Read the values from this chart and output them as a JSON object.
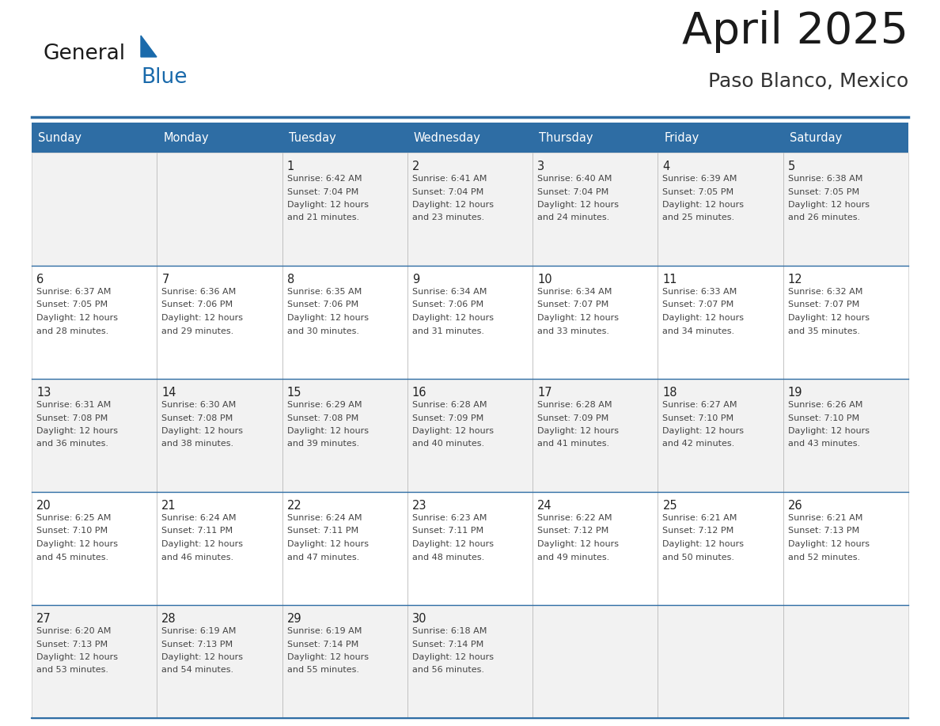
{
  "title": "April 2025",
  "subtitle": "Paso Blanco, Mexico",
  "header_bg_color": "#2E6DA4",
  "header_text_color": "#FFFFFF",
  "cell_bg_even": "#F2F2F2",
  "cell_bg_odd": "#FFFFFF",
  "day_names": [
    "Sunday",
    "Monday",
    "Tuesday",
    "Wednesday",
    "Thursday",
    "Friday",
    "Saturday"
  ],
  "days": [
    {
      "day": 1,
      "col": 2,
      "row": 0,
      "sunrise": "6:42 AM",
      "sunset": "7:04 PM",
      "daylight_hours": 12,
      "daylight_minutes": 21
    },
    {
      "day": 2,
      "col": 3,
      "row": 0,
      "sunrise": "6:41 AM",
      "sunset": "7:04 PM",
      "daylight_hours": 12,
      "daylight_minutes": 23
    },
    {
      "day": 3,
      "col": 4,
      "row": 0,
      "sunrise": "6:40 AM",
      "sunset": "7:04 PM",
      "daylight_hours": 12,
      "daylight_minutes": 24
    },
    {
      "day": 4,
      "col": 5,
      "row": 0,
      "sunrise": "6:39 AM",
      "sunset": "7:05 PM",
      "daylight_hours": 12,
      "daylight_minutes": 25
    },
    {
      "day": 5,
      "col": 6,
      "row": 0,
      "sunrise": "6:38 AM",
      "sunset": "7:05 PM",
      "daylight_hours": 12,
      "daylight_minutes": 26
    },
    {
      "day": 6,
      "col": 0,
      "row": 1,
      "sunrise": "6:37 AM",
      "sunset": "7:05 PM",
      "daylight_hours": 12,
      "daylight_minutes": 28
    },
    {
      "day": 7,
      "col": 1,
      "row": 1,
      "sunrise": "6:36 AM",
      "sunset": "7:06 PM",
      "daylight_hours": 12,
      "daylight_minutes": 29
    },
    {
      "day": 8,
      "col": 2,
      "row": 1,
      "sunrise": "6:35 AM",
      "sunset": "7:06 PM",
      "daylight_hours": 12,
      "daylight_minutes": 30
    },
    {
      "day": 9,
      "col": 3,
      "row": 1,
      "sunrise": "6:34 AM",
      "sunset": "7:06 PM",
      "daylight_hours": 12,
      "daylight_minutes": 31
    },
    {
      "day": 10,
      "col": 4,
      "row": 1,
      "sunrise": "6:34 AM",
      "sunset": "7:07 PM",
      "daylight_hours": 12,
      "daylight_minutes": 33
    },
    {
      "day": 11,
      "col": 5,
      "row": 1,
      "sunrise": "6:33 AM",
      "sunset": "7:07 PM",
      "daylight_hours": 12,
      "daylight_minutes": 34
    },
    {
      "day": 12,
      "col": 6,
      "row": 1,
      "sunrise": "6:32 AM",
      "sunset": "7:07 PM",
      "daylight_hours": 12,
      "daylight_minutes": 35
    },
    {
      "day": 13,
      "col": 0,
      "row": 2,
      "sunrise": "6:31 AM",
      "sunset": "7:08 PM",
      "daylight_hours": 12,
      "daylight_minutes": 36
    },
    {
      "day": 14,
      "col": 1,
      "row": 2,
      "sunrise": "6:30 AM",
      "sunset": "7:08 PM",
      "daylight_hours": 12,
      "daylight_minutes": 38
    },
    {
      "day": 15,
      "col": 2,
      "row": 2,
      "sunrise": "6:29 AM",
      "sunset": "7:08 PM",
      "daylight_hours": 12,
      "daylight_minutes": 39
    },
    {
      "day": 16,
      "col": 3,
      "row": 2,
      "sunrise": "6:28 AM",
      "sunset": "7:09 PM",
      "daylight_hours": 12,
      "daylight_minutes": 40
    },
    {
      "day": 17,
      "col": 4,
      "row": 2,
      "sunrise": "6:28 AM",
      "sunset": "7:09 PM",
      "daylight_hours": 12,
      "daylight_minutes": 41
    },
    {
      "day": 18,
      "col": 5,
      "row": 2,
      "sunrise": "6:27 AM",
      "sunset": "7:10 PM",
      "daylight_hours": 12,
      "daylight_minutes": 42
    },
    {
      "day": 19,
      "col": 6,
      "row": 2,
      "sunrise": "6:26 AM",
      "sunset": "7:10 PM",
      "daylight_hours": 12,
      "daylight_minutes": 43
    },
    {
      "day": 20,
      "col": 0,
      "row": 3,
      "sunrise": "6:25 AM",
      "sunset": "7:10 PM",
      "daylight_hours": 12,
      "daylight_minutes": 45
    },
    {
      "day": 21,
      "col": 1,
      "row": 3,
      "sunrise": "6:24 AM",
      "sunset": "7:11 PM",
      "daylight_hours": 12,
      "daylight_minutes": 46
    },
    {
      "day": 22,
      "col": 2,
      "row": 3,
      "sunrise": "6:24 AM",
      "sunset": "7:11 PM",
      "daylight_hours": 12,
      "daylight_minutes": 47
    },
    {
      "day": 23,
      "col": 3,
      "row": 3,
      "sunrise": "6:23 AM",
      "sunset": "7:11 PM",
      "daylight_hours": 12,
      "daylight_minutes": 48
    },
    {
      "day": 24,
      "col": 4,
      "row": 3,
      "sunrise": "6:22 AM",
      "sunset": "7:12 PM",
      "daylight_hours": 12,
      "daylight_minutes": 49
    },
    {
      "day": 25,
      "col": 5,
      "row": 3,
      "sunrise": "6:21 AM",
      "sunset": "7:12 PM",
      "daylight_hours": 12,
      "daylight_minutes": 50
    },
    {
      "day": 26,
      "col": 6,
      "row": 3,
      "sunrise": "6:21 AM",
      "sunset": "7:13 PM",
      "daylight_hours": 12,
      "daylight_minutes": 52
    },
    {
      "day": 27,
      "col": 0,
      "row": 4,
      "sunrise": "6:20 AM",
      "sunset": "7:13 PM",
      "daylight_hours": 12,
      "daylight_minutes": 53
    },
    {
      "day": 28,
      "col": 1,
      "row": 4,
      "sunrise": "6:19 AM",
      "sunset": "7:13 PM",
      "daylight_hours": 12,
      "daylight_minutes": 54
    },
    {
      "day": 29,
      "col": 2,
      "row": 4,
      "sunrise": "6:19 AM",
      "sunset": "7:14 PM",
      "daylight_hours": 12,
      "daylight_minutes": 55
    },
    {
      "day": 30,
      "col": 3,
      "row": 4,
      "sunrise": "6:18 AM",
      "sunset": "7:14 PM",
      "daylight_hours": 12,
      "daylight_minutes": 56
    }
  ],
  "logo_color_general": "#1a1a1a",
  "logo_color_blue": "#1a6aab",
  "logo_triangle_color": "#1a6aab",
  "border_color": "#2E6DA4",
  "cell_text_color": "#444444",
  "day_number_color": "#222222",
  "title_color": "#1a1a1a",
  "subtitle_color": "#333333"
}
